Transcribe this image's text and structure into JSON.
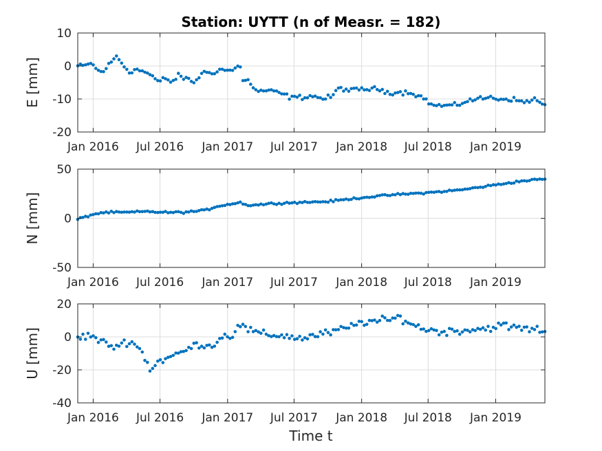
{
  "chart_data": {
    "type": "scatter",
    "title": "Station: UYTT (n of Measr. = 182)",
    "xlabel": "Time t",
    "x_axis_type": "date",
    "xlim": [
      "2015-11-20",
      "2019-05-15"
    ],
    "xticks": [
      "2016-01-01",
      "2016-07-01",
      "2017-01-01",
      "2017-07-01",
      "2018-01-01",
      "2018-07-01",
      "2019-01-01"
    ],
    "xtick_labels": [
      "Jan 2016",
      "Jul 2016",
      "Jan 2017",
      "Jul 2017",
      "Jan 2018",
      "Jul 2018",
      "Jan 2019"
    ],
    "grid": true,
    "marker_color": "#0072BD",
    "subplots": [
      {
        "ylabel": "E [mm]",
        "ylim": [
          -20,
          10
        ],
        "yticks": [
          -20,
          -10,
          0,
          10
        ],
        "anchors": [
          [
            "2015-11-20",
            0
          ],
          [
            "2015-12-10",
            0
          ],
          [
            "2015-12-25",
            1
          ],
          [
            "2016-01-10",
            -1
          ],
          [
            "2016-01-25",
            -2
          ],
          [
            "2016-02-10",
            0
          ],
          [
            "2016-03-05",
            3
          ],
          [
            "2016-03-25",
            0
          ],
          [
            "2016-04-10",
            -2
          ],
          [
            "2016-04-20",
            -1
          ],
          [
            "2016-05-15",
            -1.5
          ],
          [
            "2016-06-10",
            -3
          ],
          [
            "2016-06-25",
            -5
          ],
          [
            "2016-07-15",
            -3.5
          ],
          [
            "2016-08-01",
            -5
          ],
          [
            "2016-08-20",
            -3
          ],
          [
            "2016-09-15",
            -4
          ],
          [
            "2016-10-01",
            -5
          ],
          [
            "2016-10-25",
            -2
          ],
          [
            "2016-11-20",
            -2
          ],
          [
            "2016-12-15",
            -1
          ],
          [
            "2017-01-10",
            -1.5
          ],
          [
            "2017-01-25",
            -0.5
          ],
          [
            "2017-02-05",
            0
          ],
          [
            "2017-02-10",
            -4
          ],
          [
            "2017-03-01",
            -4.5
          ],
          [
            "2017-03-15",
            -7.5
          ],
          [
            "2017-04-15",
            -7.5
          ],
          [
            "2017-05-20",
            -8
          ],
          [
            "2017-06-20",
            -9.5
          ],
          [
            "2017-07-20",
            -9.5
          ],
          [
            "2017-08-20",
            -9
          ],
          [
            "2017-09-20",
            -10
          ],
          [
            "2017-10-15",
            -9
          ],
          [
            "2017-11-01",
            -6.5
          ],
          [
            "2017-12-01",
            -7.5
          ],
          [
            "2018-01-01",
            -7
          ],
          [
            "2018-02-15",
            -7
          ],
          [
            "2018-03-15",
            -8
          ],
          [
            "2018-04-15",
            -8
          ],
          [
            "2018-05-15",
            -8
          ],
          [
            "2018-06-15",
            -9.5
          ],
          [
            "2018-07-15",
            -12
          ],
          [
            "2018-08-15",
            -12
          ],
          [
            "2018-09-15",
            -12
          ],
          [
            "2018-10-15",
            -10.5
          ],
          [
            "2018-11-15",
            -10
          ],
          [
            "2018-12-15",
            -9.5
          ],
          [
            "2019-01-15",
            -10
          ],
          [
            "2019-02-15",
            -10
          ],
          [
            "2019-03-15",
            -11
          ],
          [
            "2019-04-15",
            -10
          ],
          [
            "2019-05-15",
            -12
          ]
        ],
        "noise": 0.6
      },
      {
        "ylabel": "N [mm]",
        "ylim": [
          -50,
          50
        ],
        "yticks": [
          -50,
          0,
          50
        ],
        "anchors": [
          [
            "2015-11-20",
            -1
          ],
          [
            "2016-01-01",
            4
          ],
          [
            "2016-02-01",
            6
          ],
          [
            "2016-04-01",
            6
          ],
          [
            "2016-06-01",
            7
          ],
          [
            "2016-07-01",
            6
          ],
          [
            "2016-09-01",
            6
          ],
          [
            "2016-11-01",
            8
          ],
          [
            "2016-12-01",
            12
          ],
          [
            "2017-01-01",
            14
          ],
          [
            "2017-02-05",
            16
          ],
          [
            "2017-03-01",
            13
          ],
          [
            "2017-05-01",
            15
          ],
          [
            "2017-07-01",
            16
          ],
          [
            "2017-10-01",
            17
          ],
          [
            "2018-01-01",
            21
          ],
          [
            "2018-04-01",
            24
          ],
          [
            "2018-07-01",
            26
          ],
          [
            "2018-10-01",
            29
          ],
          [
            "2019-01-01",
            34
          ],
          [
            "2019-03-15",
            38
          ],
          [
            "2019-05-15",
            40
          ]
        ],
        "noise": 0.8
      },
      {
        "ylabel": "U [mm]",
        "ylim": [
          -40,
          20
        ],
        "yticks": [
          -40,
          -20,
          0,
          20
        ],
        "anchors": [
          [
            "2015-11-20",
            -1
          ],
          [
            "2015-12-20",
            1
          ],
          [
            "2016-01-10",
            -1
          ],
          [
            "2016-02-01",
            -4
          ],
          [
            "2016-03-01",
            -6
          ],
          [
            "2016-04-10",
            -2
          ],
          [
            "2016-05-10",
            -8
          ],
          [
            "2016-06-05",
            -20
          ],
          [
            "2016-06-25",
            -15
          ],
          [
            "2016-08-01",
            -12
          ],
          [
            "2016-09-01",
            -9
          ],
          [
            "2016-10-15",
            -4
          ],
          [
            "2016-11-15",
            -6
          ],
          [
            "2016-12-15",
            0
          ],
          [
            "2017-01-15",
            1
          ],
          [
            "2017-01-30",
            8
          ],
          [
            "2017-03-01",
            4
          ],
          [
            "2017-04-15",
            1
          ],
          [
            "2017-06-01",
            1
          ],
          [
            "2017-07-15",
            -1
          ],
          [
            "2017-09-01",
            1
          ],
          [
            "2017-10-15",
            3
          ],
          [
            "2017-12-01",
            6
          ],
          [
            "2018-01-01",
            9
          ],
          [
            "2018-03-15",
            10
          ],
          [
            "2018-04-15",
            12
          ],
          [
            "2018-06-01",
            6
          ],
          [
            "2018-08-01",
            3
          ],
          [
            "2018-10-01",
            4
          ],
          [
            "2018-12-01",
            5
          ],
          [
            "2019-01-15",
            7
          ],
          [
            "2019-03-15",
            5
          ],
          [
            "2019-05-15",
            4
          ]
        ],
        "noise": 2.0
      }
    ]
  }
}
